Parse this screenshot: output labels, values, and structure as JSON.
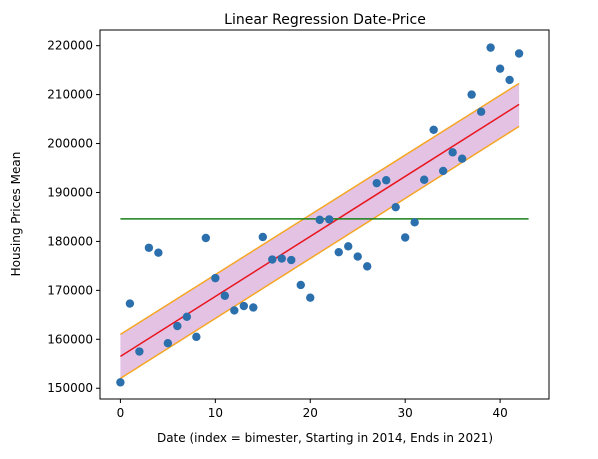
{
  "chart_data": {
    "type": "scatter",
    "title": "Linear Regression Date-Price",
    "xlabel": "Date (index = bimester, Starting in 2014, Ends in 2021)",
    "ylabel": "Housing Prices Mean",
    "xlim": [
      -2.15,
      45.15
    ],
    "ylim": [
      147800,
      223200
    ],
    "xticks": [
      0,
      10,
      20,
      30,
      40
    ],
    "yticks": [
      150000,
      160000,
      170000,
      180000,
      190000,
      200000,
      210000,
      220000
    ],
    "grid": false,
    "x": [
      0,
      1,
      2,
      3,
      4,
      5,
      6,
      7,
      8,
      9,
      10,
      11,
      12,
      13,
      14,
      15,
      16,
      17,
      18,
      19,
      20,
      21,
      22,
      23,
      24,
      25,
      26,
      27,
      28,
      29,
      30,
      31,
      32,
      33,
      34,
      35,
      36,
      37,
      38,
      39,
      40,
      41,
      42
    ],
    "y": [
      151200,
      167300,
      157500,
      178700,
      177700,
      159200,
      162700,
      164600,
      160500,
      180700,
      172500,
      168900,
      165900,
      166800,
      166500,
      180900,
      176300,
      176500,
      176200,
      171100,
      168500,
      184400,
      184500,
      177800,
      179000,
      176900,
      174900,
      191900,
      192500,
      187000,
      180800,
      183900,
      192600,
      202800,
      194400,
      198200,
      196900,
      210000,
      206500,
      219600,
      215300,
      213000,
      218400
    ],
    "regression": {
      "x": [
        0,
        42
      ],
      "y": [
        156500,
        208000
      ],
      "color": "#e8161e"
    },
    "band": {
      "x": [
        0,
        42
      ],
      "upper": [
        161000,
        212300
      ],
      "lower": [
        152000,
        203500
      ],
      "edge_color": "#f5a623",
      "fill_color": "#d8a8d8"
    },
    "mean_line": {
      "x": [
        0,
        43
      ],
      "y": 184600,
      "color": "#178117"
    },
    "point_color": "#2c6fad"
  }
}
